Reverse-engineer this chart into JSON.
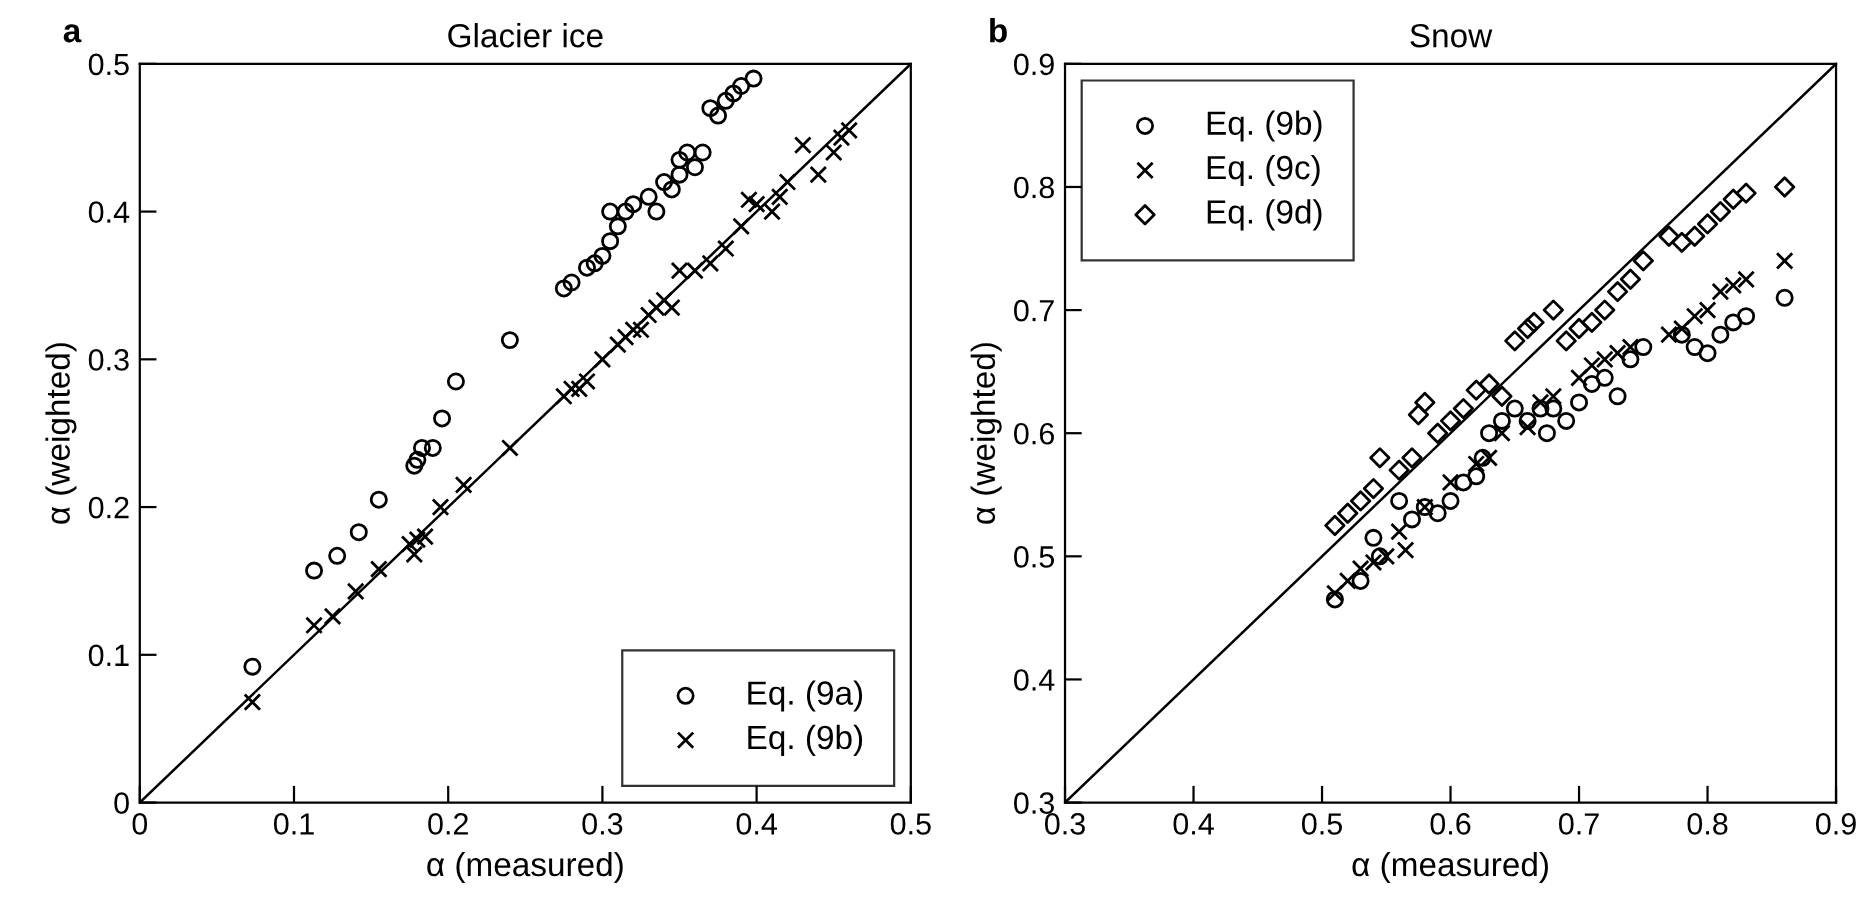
{
  "chart_data": [
    {
      "type": "scatter",
      "title": "Glacier ice",
      "xlabel": "α (measured)",
      "ylabel": "α (weighted)",
      "annotations": [
        "a"
      ],
      "xlim": [
        0,
        0.5
      ],
      "ylim": [
        0,
        0.5
      ],
      "xticks": [
        0,
        0.1,
        0.2,
        0.3,
        0.4,
        0.5
      ],
      "yticks": [
        0,
        0.1,
        0.2,
        0.3,
        0.4,
        0.5
      ],
      "grid": false,
      "legend": "bottom right",
      "series": [
        {
          "name": "Eq. (9a)",
          "color": "#000000",
          "marker": "circle",
          "x": [
            0.073,
            0.113,
            0.128,
            0.142,
            0.155,
            0.178,
            0.18,
            0.183,
            0.19,
            0.196,
            0.205,
            0.24,
            0.275,
            0.28,
            0.29,
            0.295,
            0.3,
            0.305,
            0.31,
            0.305,
            0.315,
            0.32,
            0.33,
            0.335,
            0.34,
            0.345,
            0.35,
            0.35,
            0.355,
            0.36,
            0.365,
            0.37,
            0.375,
            0.38,
            0.385,
            0.39,
            0.398
          ],
          "values": [
            0.092,
            0.157,
            0.167,
            0.183,
            0.205,
            0.228,
            0.232,
            0.24,
            0.24,
            0.26,
            0.285,
            0.313,
            0.348,
            0.352,
            0.362,
            0.365,
            0.37,
            0.38,
            0.39,
            0.4,
            0.4,
            0.405,
            0.41,
            0.4,
            0.42,
            0.415,
            0.425,
            0.435,
            0.44,
            0.43,
            0.44,
            0.47,
            0.465,
            0.475,
            0.48,
            0.485,
            0.49
          ]
        },
        {
          "name": "Eq. (9b)",
          "color": "#000000",
          "marker": "cross",
          "x": [
            0.073,
            0.113,
            0.125,
            0.14,
            0.155,
            0.175,
            0.178,
            0.18,
            0.185,
            0.195,
            0.21,
            0.24,
            0.275,
            0.28,
            0.285,
            0.29,
            0.3,
            0.31,
            0.315,
            0.32,
            0.325,
            0.33,
            0.335,
            0.34,
            0.345,
            0.35,
            0.36,
            0.37,
            0.38,
            0.39,
            0.395,
            0.4,
            0.41,
            0.415,
            0.42,
            0.43,
            0.44,
            0.45,
            0.455,
            0.46
          ],
          "values": [
            0.068,
            0.12,
            0.126,
            0.143,
            0.158,
            0.175,
            0.168,
            0.178,
            0.18,
            0.2,
            0.215,
            0.24,
            0.275,
            0.28,
            0.28,
            0.285,
            0.3,
            0.31,
            0.315,
            0.32,
            0.32,
            0.33,
            0.335,
            0.34,
            0.335,
            0.36,
            0.36,
            0.365,
            0.375,
            0.39,
            0.408,
            0.405,
            0.4,
            0.41,
            0.42,
            0.445,
            0.425,
            0.44,
            0.45,
            0.455
          ]
        },
        {
          "type": "line",
          "color": "#000000",
          "x": [
            0,
            0.5
          ],
          "values": [
            0,
            0.5
          ]
        }
      ]
    },
    {
      "type": "scatter",
      "title": "Snow",
      "xlabel": "α (measured)",
      "ylabel": "α (weighted)",
      "annotations": [
        "b"
      ],
      "xlim": [
        0.3,
        0.9
      ],
      "ylim": [
        0.3,
        0.9
      ],
      "xticks": [
        0.3,
        0.4,
        0.5,
        0.6,
        0.7,
        0.8,
        0.9
      ],
      "yticks": [
        0.3,
        0.4,
        0.5,
        0.6,
        0.7,
        0.8,
        0.9
      ],
      "grid": false,
      "legend": "top left",
      "series": [
        {
          "name": "Eq. (9b)",
          "color": "#000000",
          "marker": "circle",
          "x": [
            0.51,
            0.53,
            0.54,
            0.545,
            0.56,
            0.57,
            0.58,
            0.59,
            0.6,
            0.61,
            0.62,
            0.625,
            0.63,
            0.64,
            0.65,
            0.66,
            0.67,
            0.675,
            0.68,
            0.69,
            0.7,
            0.71,
            0.72,
            0.73,
            0.74,
            0.75,
            0.78,
            0.79,
            0.8,
            0.81,
            0.82,
            0.83,
            0.86
          ],
          "values": [
            0.465,
            0.48,
            0.515,
            0.5,
            0.545,
            0.53,
            0.54,
            0.535,
            0.545,
            0.56,
            0.565,
            0.58,
            0.6,
            0.61,
            0.62,
            0.61,
            0.62,
            0.6,
            0.62,
            0.61,
            0.625,
            0.64,
            0.645,
            0.63,
            0.66,
            0.67,
            0.68,
            0.67,
            0.665,
            0.68,
            0.69,
            0.695,
            0.71
          ]
        },
        {
          "name": "Eq. (9c)",
          "color": "#000000",
          "marker": "cross",
          "x": [
            0.51,
            0.52,
            0.53,
            0.54,
            0.55,
            0.56,
            0.565,
            0.58,
            0.6,
            0.62,
            0.63,
            0.64,
            0.66,
            0.67,
            0.68,
            0.7,
            0.71,
            0.72,
            0.73,
            0.74,
            0.77,
            0.78,
            0.79,
            0.8,
            0.81,
            0.82,
            0.83,
            0.86
          ],
          "values": [
            0.47,
            0.48,
            0.49,
            0.495,
            0.5,
            0.52,
            0.505,
            0.54,
            0.56,
            0.575,
            0.58,
            0.6,
            0.605,
            0.625,
            0.63,
            0.645,
            0.655,
            0.66,
            0.665,
            0.67,
            0.68,
            0.685,
            0.695,
            0.7,
            0.715,
            0.72,
            0.725,
            0.74
          ]
        },
        {
          "name": "Eq. (9d)",
          "color": "#000000",
          "marker": "diamond",
          "x": [
            0.51,
            0.52,
            0.53,
            0.54,
            0.545,
            0.56,
            0.57,
            0.575,
            0.58,
            0.59,
            0.6,
            0.61,
            0.62,
            0.63,
            0.64,
            0.65,
            0.66,
            0.665,
            0.68,
            0.69,
            0.7,
            0.71,
            0.72,
            0.73,
            0.74,
            0.75,
            0.77,
            0.78,
            0.79,
            0.8,
            0.81,
            0.82,
            0.83,
            0.86
          ],
          "values": [
            0.525,
            0.535,
            0.545,
            0.555,
            0.58,
            0.57,
            0.58,
            0.615,
            0.625,
            0.6,
            0.61,
            0.62,
            0.635,
            0.64,
            0.63,
            0.675,
            0.685,
            0.69,
            0.7,
            0.675,
            0.685,
            0.69,
            0.7,
            0.715,
            0.725,
            0.74,
            0.76,
            0.755,
            0.76,
            0.77,
            0.78,
            0.79,
            0.795,
            0.8
          ]
        },
        {
          "type": "line",
          "color": "#000000",
          "x": [
            0.3,
            0.9
          ],
          "values": [
            0.3,
            0.9
          ]
        }
      ]
    }
  ]
}
